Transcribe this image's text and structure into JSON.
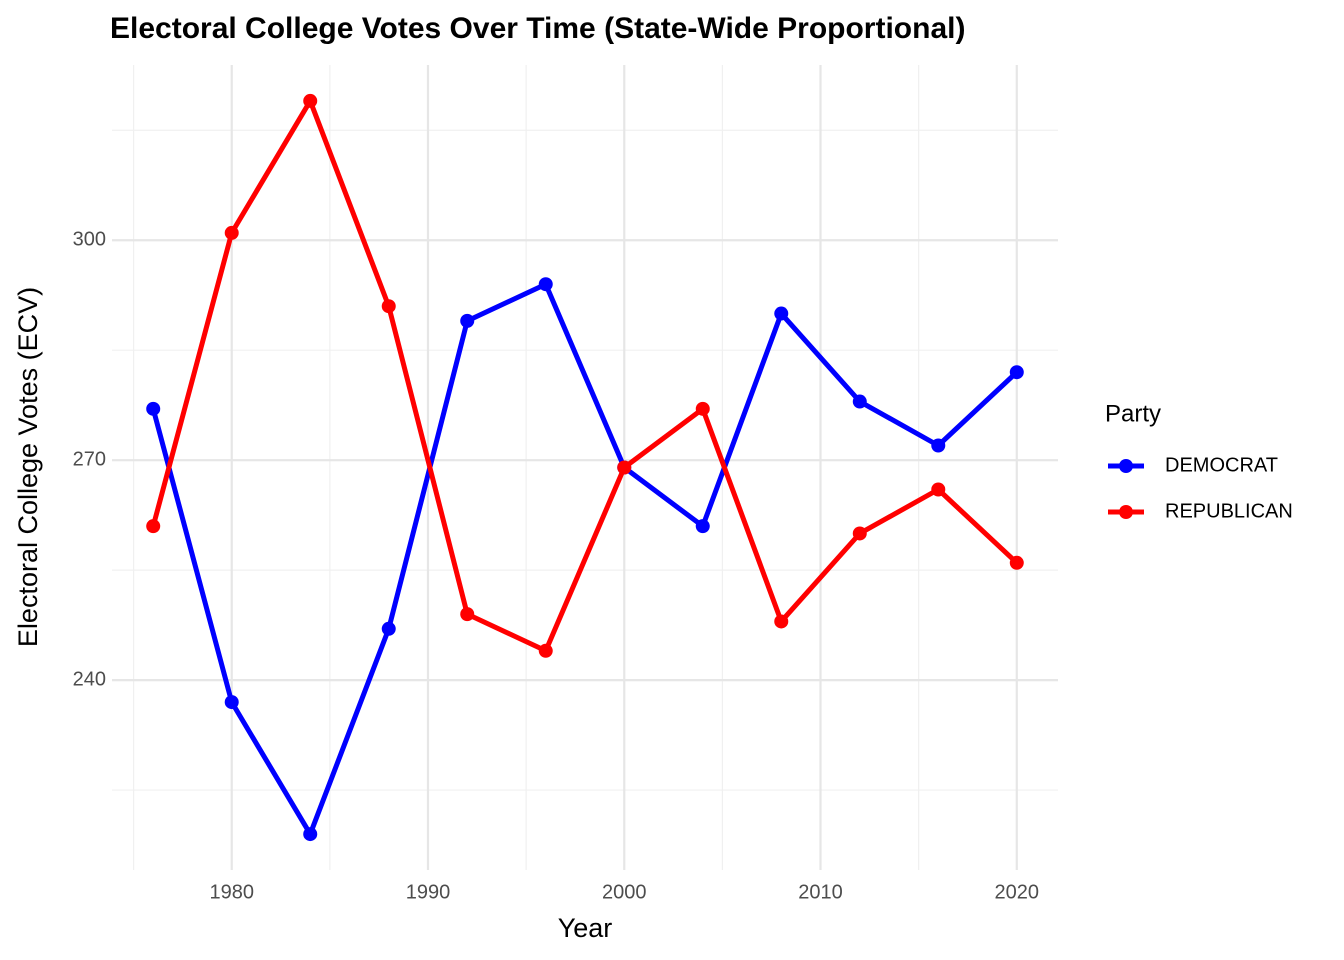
{
  "chart_data": {
    "type": "line",
    "title": "Electoral College Votes Over Time (State-Wide Proportional)",
    "x_label": "Year",
    "y_label": "Electoral College Votes (ECV)",
    "legend_title": "Party",
    "legend_position": "right",
    "grid": true,
    "x": [
      1976,
      1980,
      1984,
      1988,
      1992,
      1996,
      2000,
      2004,
      2008,
      2012,
      2016,
      2020
    ],
    "series": [
      {
        "name": "DEMOCRAT",
        "color": "#0000ff",
        "values": [
          277,
          237,
          219,
          247,
          289,
          294,
          269,
          261,
          290,
          278,
          272,
          282
        ]
      },
      {
        "name": "REPUBLICAN",
        "color": "#ff0000",
        "values": [
          261,
          301,
          319,
          291,
          249,
          244,
          269,
          277,
          248,
          260,
          266,
          256
        ]
      }
    ],
    "xlim": [
      1973.9,
      2022.1
    ],
    "xticks": [
      1980,
      1990,
      2000,
      2010,
      2020
    ],
    "xminorticks": [
      1975,
      1985,
      1995,
      2005,
      2015
    ],
    "ylim": [
      214.1,
      323.9
    ],
    "yticks": [
      240,
      270,
      300
    ],
    "yminorticks": [
      225,
      255,
      285,
      315
    ]
  }
}
